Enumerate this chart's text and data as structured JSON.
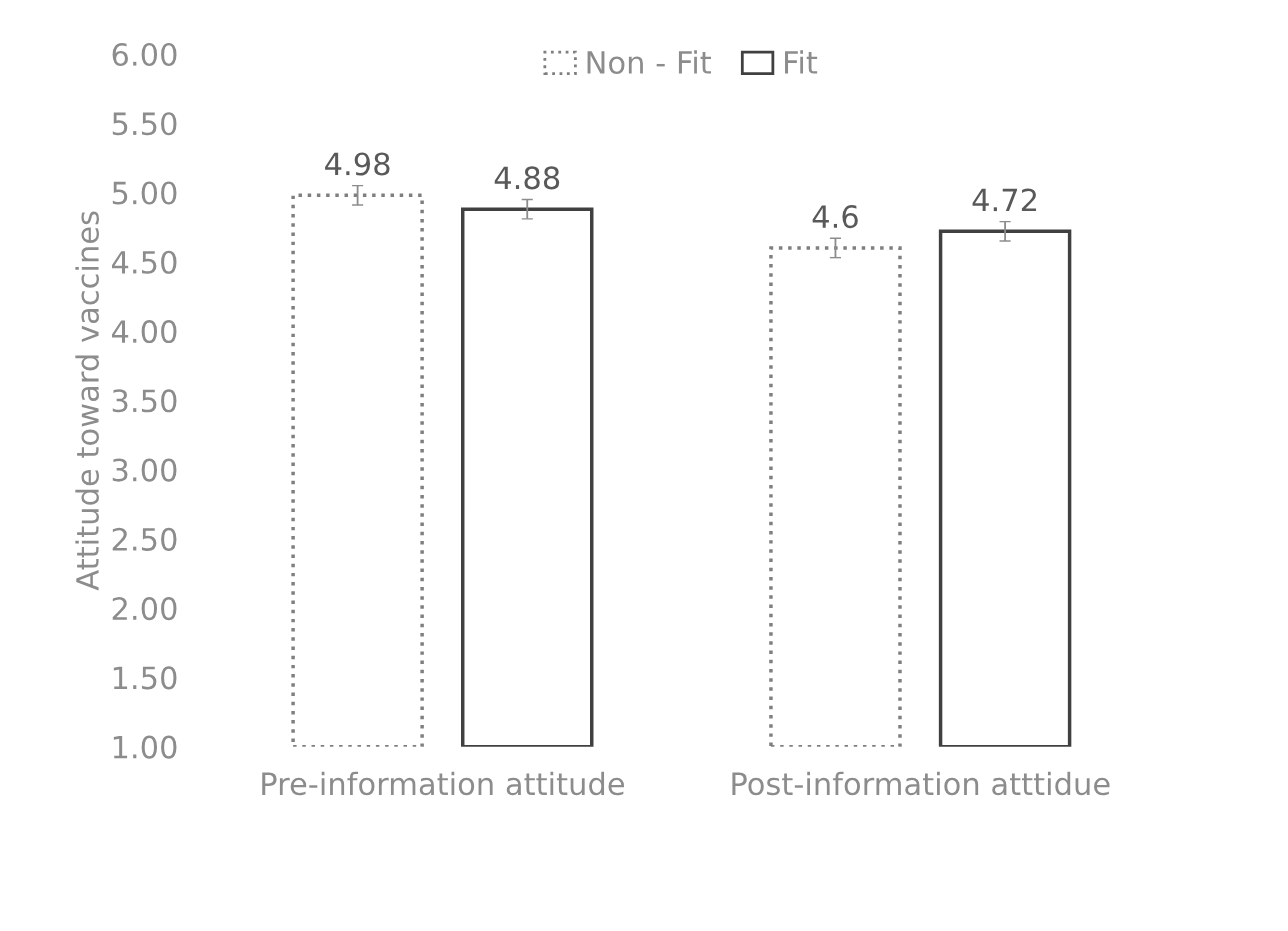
{
  "chart_data": {
    "type": "bar",
    "ylabel": "Attitude toward vaccines",
    "categories": [
      "Pre-information attitude",
      "Post-information atttidue"
    ],
    "series": [
      {
        "name": "Non - Fit",
        "color": "#7f7f7f",
        "line_style": "dotted",
        "values": [
          4.98,
          4.6
        ],
        "errors": [
          0.07,
          0.07
        ]
      },
      {
        "name": "Fit",
        "color": "#404040",
        "line_style": "solid",
        "values": [
          4.88,
          4.72
        ],
        "errors": [
          0.07,
          0.07
        ]
      }
    ],
    "ylim": [
      1,
      6
    ],
    "yticks": [
      {
        "value": 1,
        "label": "1.00"
      },
      {
        "value": 1.5,
        "label": "1.50"
      },
      {
        "value": 2,
        "label": "2.00"
      },
      {
        "value": 2.5,
        "label": "2.50"
      },
      {
        "value": 3,
        "label": "3.00"
      },
      {
        "value": 3.5,
        "label": "3.50"
      },
      {
        "value": 4,
        "label": "4.00"
      },
      {
        "value": 4.5,
        "label": "4.50"
      },
      {
        "value": 5,
        "label": "5.00"
      },
      {
        "value": 5.5,
        "label": "5.50"
      },
      {
        "value": 6,
        "label": "6.00"
      }
    ],
    "grid": false,
    "legend": "top",
    "data_labels": true
  }
}
